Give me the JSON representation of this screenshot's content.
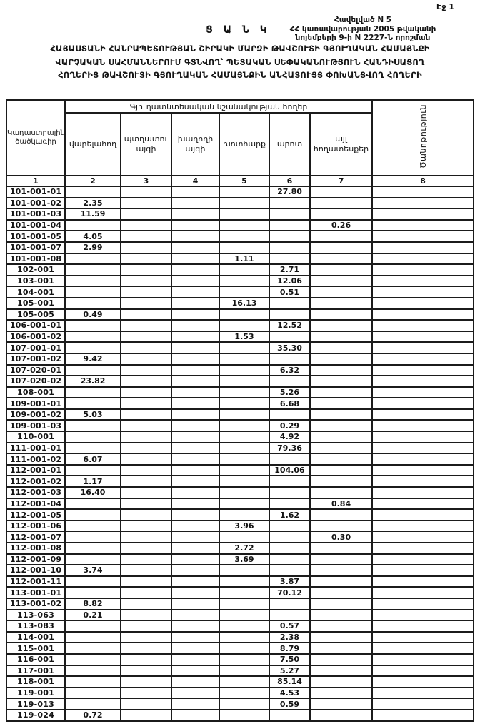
{
  "page": {
    "page_label": "Էջ 1",
    "annex_line1": "Հավելված N 5",
    "annex_line2": "ՀՀ կառավարության 2005 թվականի",
    "annex_line3": "նոյեմբերի 9-ի N 2227-Ն որոշման",
    "doc_type": "Ց Ա Ն Կ",
    "title_line1": "ՀԱՅԱՍՏԱՆԻ ՀԱՆՐԱՊԵՏՈՒԹՅԱՆ ՇԻՐԱԿԻ ՄԱՐԶԻ ԹԱՎՇՈՒՏԻ ԳՅՈՒՂԱԿԱՆ ՀԱՄԱՅՆՔԻ",
    "title_line2": "ՎԱՐՉԱԿԱՆ ՍԱՀՄԱՆՆԵՐՈՒՄ ԳՏՆՎՈՂ՝ ՊԵՏԱԿԱՆ ՍԵՓԱԿԱՆՈՒԹՅՈՒՆ ՀԱՆԴԻՍԱՑՈՂ",
    "title_line3": "ՀՈՂԵՐԻՑ ԹԱՎՇՈՒՏԻ ԳՅՈՒՂԱԿԱՆ ՀԱՄԱՅՆՔԻՆ ԱՆՀԱՏՈՒՅՑ ՓՈԽԱՆՑՎՈՂ  ՀՈՂԵՐԻ"
  },
  "colors": {
    "ink": "#141414",
    "paper": "#ffffff"
  },
  "table": {
    "cadastral_header": "Կադաստրային ծածկագիր",
    "group_header": "Գյուղատնտեսական նշանակության հողեր",
    "sub_headers": [
      "վարելահող",
      "պտղատու այգի",
      "խաղողի այգի",
      "խոտհարք",
      "արոտ",
      "այլ հողատեսքեր"
    ],
    "note_header": "Ծանոթություն",
    "column_numbers": [
      "1",
      "2",
      "3",
      "4",
      "5",
      "6",
      "7",
      "8"
    ],
    "rows": [
      {
        "code": "101-001-01",
        "cells": [
          "",
          "",
          "",
          "",
          "27.80",
          "",
          ""
        ]
      },
      {
        "code": "101-001-02",
        "cells": [
          "2.35",
          "",
          "",
          "",
          "",
          "",
          ""
        ]
      },
      {
        "code": "101-001-03",
        "cells": [
          "11.59",
          "",
          "",
          "",
          "",
          "",
          ""
        ]
      },
      {
        "code": "101-001-04",
        "cells": [
          "",
          "",
          "",
          "",
          "",
          "0.26",
          ""
        ]
      },
      {
        "code": "101-001-05",
        "cells": [
          "4.05",
          "",
          "",
          "",
          "",
          "",
          ""
        ]
      },
      {
        "code": "101-001-07",
        "cells": [
          "2.99",
          "",
          "",
          "",
          "",
          "",
          ""
        ]
      },
      {
        "code": "101-001-08",
        "cells": [
          "",
          "",
          "",
          "1.11",
          "",
          "",
          ""
        ]
      },
      {
        "code": "102-001",
        "cells": [
          "",
          "",
          "",
          "",
          "2.71",
          "",
          ""
        ]
      },
      {
        "code": "103-001",
        "cells": [
          "",
          "",
          "",
          "",
          "12.06",
          "",
          ""
        ]
      },
      {
        "code": "104-001",
        "cells": [
          "",
          "",
          "",
          "",
          "0.51",
          "",
          ""
        ]
      },
      {
        "code": "105-001",
        "cells": [
          "",
          "",
          "",
          "16.13",
          "",
          "",
          ""
        ]
      },
      {
        "code": "105-005",
        "cells": [
          "0.49",
          "",
          "",
          "",
          "",
          "",
          ""
        ]
      },
      {
        "code": "106-001-01",
        "cells": [
          "",
          "",
          "",
          "",
          "12.52",
          "",
          ""
        ]
      },
      {
        "code": "106-001-02",
        "cells": [
          "",
          "",
          "",
          "1.53",
          "",
          "",
          ""
        ]
      },
      {
        "code": "107-001-01",
        "cells": [
          "",
          "",
          "",
          "",
          "35.30",
          "",
          ""
        ]
      },
      {
        "code": "107-001-02",
        "cells": [
          "9.42",
          "",
          "",
          "",
          "",
          "",
          ""
        ]
      },
      {
        "code": "107-020-01",
        "cells": [
          "",
          "",
          "",
          "",
          "6.32",
          "",
          ""
        ]
      },
      {
        "code": "107-020-02",
        "cells": [
          "23.82",
          "",
          "",
          "",
          "",
          "",
          ""
        ]
      },
      {
        "code": "108-001",
        "cells": [
          "",
          "",
          "",
          "",
          "5.26",
          "",
          ""
        ]
      },
      {
        "code": "109-001-01",
        "cells": [
          "",
          "",
          "",
          "",
          "6.68",
          "",
          ""
        ]
      },
      {
        "code": "109-001-02",
        "cells": [
          "5.03",
          "",
          "",
          "",
          "",
          "",
          ""
        ]
      },
      {
        "code": "109-001-03",
        "cells": [
          "",
          "",
          "",
          "",
          "0.29",
          "",
          ""
        ]
      },
      {
        "code": "110-001",
        "cells": [
          "",
          "",
          "",
          "",
          "4.92",
          "",
          ""
        ]
      },
      {
        "code": "111-001-01",
        "cells": [
          "",
          "",
          "",
          "",
          "79.36",
          "",
          ""
        ]
      },
      {
        "code": "111-001-02",
        "cells": [
          "6.07",
          "",
          "",
          "",
          "",
          "",
          ""
        ]
      },
      {
        "code": "112-001-01",
        "cells": [
          "",
          "",
          "",
          "",
          "104.06",
          "",
          ""
        ]
      },
      {
        "code": "112-001-02",
        "cells": [
          "1.17",
          "",
          "",
          "",
          "",
          "",
          ""
        ]
      },
      {
        "code": "112-001-03",
        "cells": [
          "16.40",
          "",
          "",
          "",
          "",
          "",
          ""
        ]
      },
      {
        "code": "112-001-04",
        "cells": [
          "",
          "",
          "",
          "",
          "",
          "0.84",
          ""
        ]
      },
      {
        "code": "112-001-05",
        "cells": [
          "",
          "",
          "",
          "",
          "1.62",
          "",
          ""
        ]
      },
      {
        "code": "112-001-06",
        "cells": [
          "",
          "",
          "",
          "3.96",
          "",
          "",
          ""
        ]
      },
      {
        "code": "112-001-07",
        "cells": [
          "",
          "",
          "",
          "",
          "",
          "0.30",
          ""
        ]
      },
      {
        "code": "112-001-08",
        "cells": [
          "",
          "",
          "",
          "2.72",
          "",
          "",
          ""
        ]
      },
      {
        "code": "112-001-09",
        "cells": [
          "",
          "",
          "",
          "3.69",
          "",
          "",
          ""
        ]
      },
      {
        "code": "112-001-10",
        "cells": [
          "3.74",
          "",
          "",
          "",
          "",
          "",
          ""
        ]
      },
      {
        "code": "112-001-11",
        "cells": [
          "",
          "",
          "",
          "",
          "3.87",
          "",
          ""
        ]
      },
      {
        "code": "113-001-01",
        "cells": [
          "",
          "",
          "",
          "",
          "70.12",
          "",
          ""
        ]
      },
      {
        "code": "113-001-02",
        "cells": [
          "8.82",
          "",
          "",
          "",
          "",
          "",
          ""
        ]
      },
      {
        "code": "113-063",
        "cells": [
          "0.21",
          "",
          "",
          "",
          "",
          "",
          ""
        ]
      },
      {
        "code": "113-083",
        "cells": [
          "",
          "",
          "",
          "",
          "0.57",
          "",
          ""
        ]
      },
      {
        "code": "114-001",
        "cells": [
          "",
          "",
          "",
          "",
          "2.38",
          "",
          ""
        ]
      },
      {
        "code": "115-001",
        "cells": [
          "",
          "",
          "",
          "",
          "8.79",
          "",
          ""
        ]
      },
      {
        "code": "116-001",
        "cells": [
          "",
          "",
          "",
          "",
          "7.50",
          "",
          ""
        ]
      },
      {
        "code": "117-001",
        "cells": [
          "",
          "",
          "",
          "",
          "5.27",
          "",
          ""
        ]
      },
      {
        "code": "118-001",
        "cells": [
          "",
          "",
          "",
          "",
          "85.14",
          "",
          ""
        ]
      },
      {
        "code": "119-001",
        "cells": [
          "",
          "",
          "",
          "",
          "4.53",
          "",
          ""
        ]
      },
      {
        "code": "119-013",
        "cells": [
          "",
          "",
          "",
          "",
          "0.59",
          "",
          ""
        ]
      },
      {
        "code": "119-024",
        "cells": [
          "0.72",
          "",
          "",
          "",
          "",
          "",
          ""
        ]
      }
    ]
  }
}
